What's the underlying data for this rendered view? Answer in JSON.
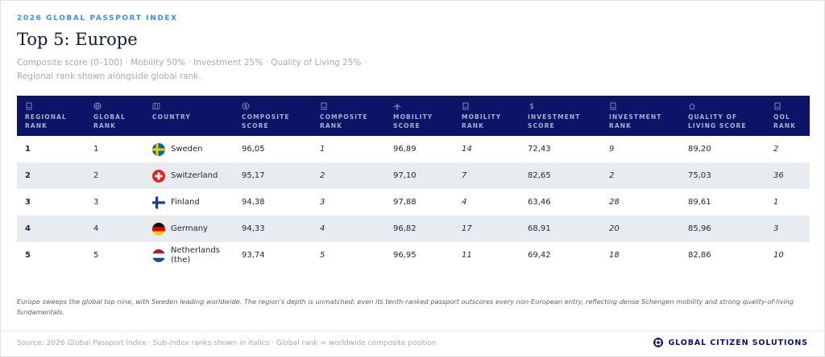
{
  "header": {
    "eyebrow": "2026 GLOBAL PASSPORT INDEX",
    "title": "Top 5: Europe",
    "subtitle_line1": "Composite score (0–100) · Mobility 50% · Investment 25% · Quality of Living 25% ·",
    "subtitle_line2": "Regional rank shown alongside global rank."
  },
  "table": {
    "columns": [
      {
        "line1": "REGIONAL",
        "line2": "RANK",
        "icon": "document-icon"
      },
      {
        "line1": "GLOBAL",
        "line2": "RANK",
        "icon": "globe-icon"
      },
      {
        "line1": "COUNTRY",
        "line2": "",
        "icon": "map-icon"
      },
      {
        "line1": "COMPOSITE",
        "line2": "SCORE",
        "icon": "coin-icon"
      },
      {
        "line1": "COMPOSITE",
        "line2": "RANK",
        "icon": "document-icon"
      },
      {
        "line1": "MOBILITY",
        "line2": "SCORE",
        "icon": "plane-icon"
      },
      {
        "line1": "MOBILITY",
        "line2": "RANK",
        "icon": "document-icon"
      },
      {
        "line1": "INVESTMENT",
        "line2": "SCORE",
        "icon": "dollar-icon"
      },
      {
        "line1": "INVESTMENT",
        "line2": "RANK",
        "icon": "document-icon"
      },
      {
        "line1": "QUALITY OF",
        "line2": "LIVING SCORE",
        "icon": "home-icon"
      },
      {
        "line1": "QOL",
        "line2": "RANK",
        "icon": "document-icon"
      }
    ],
    "rows": [
      {
        "regional_rank": "1",
        "global_rank": "1",
        "country": "Sweden",
        "flag": "sweden-flag-icon",
        "composite_score": "96,05",
        "composite_rank": "1",
        "mobility_score": "96,89",
        "mobility_rank": "14",
        "investment_score": "72,43",
        "investment_rank": "9",
        "qol_score": "89,20",
        "qol_rank": "2"
      },
      {
        "regional_rank": "2",
        "global_rank": "2",
        "country": "Switzerland",
        "flag": "switzerland-flag-icon",
        "composite_score": "95,17",
        "composite_rank": "2",
        "mobility_score": "97,10",
        "mobility_rank": "7",
        "investment_score": "82,65",
        "investment_rank": "2",
        "qol_score": "75,03",
        "qol_rank": "36"
      },
      {
        "regional_rank": "3",
        "global_rank": "3",
        "country": "Finland",
        "flag": "finland-flag-icon",
        "composite_score": "94,38",
        "composite_rank": "3",
        "mobility_score": "97,88",
        "mobility_rank": "4",
        "investment_score": "63,46",
        "investment_rank": "28",
        "qol_score": "89,61",
        "qol_rank": "1"
      },
      {
        "regional_rank": "4",
        "global_rank": "4",
        "country": "Germany",
        "flag": "germany-flag-icon",
        "composite_score": "94,33",
        "composite_rank": "4",
        "mobility_score": "96,82",
        "mobility_rank": "17",
        "investment_score": "68,91",
        "investment_rank": "20",
        "qol_score": "85,96",
        "qol_rank": "3"
      },
      {
        "regional_rank": "5",
        "global_rank": "5",
        "country": "Netherlands (the)",
        "flag": "netherlands-flag-icon",
        "composite_score": "93,74",
        "composite_rank": "5",
        "mobility_score": "96,95",
        "mobility_rank": "11",
        "investment_score": "69,42",
        "investment_rank": "18",
        "qol_score": "82,86",
        "qol_rank": "10"
      }
    ]
  },
  "note": "Europe sweeps the global top nine, with Sweden leading worldwide. The region's depth is unmatched: even its tenth-ranked passport outscores every non-European entry, reflecting dense Schengen mobility and strong quality-of-living fundamentals.",
  "footer": {
    "source": "Source: 2026 Global Passport Index · Sub-index ranks shown in italics · Global rank = worldwide composite position",
    "brand": "GLOBAL CITIZEN SOLUTIONS",
    "brand_icon": "gcs-logo-icon"
  },
  "colors": {
    "header_bg": "#0c1468",
    "eyebrow": "#3d8fe8",
    "alt_row": "#e8ebf0"
  }
}
